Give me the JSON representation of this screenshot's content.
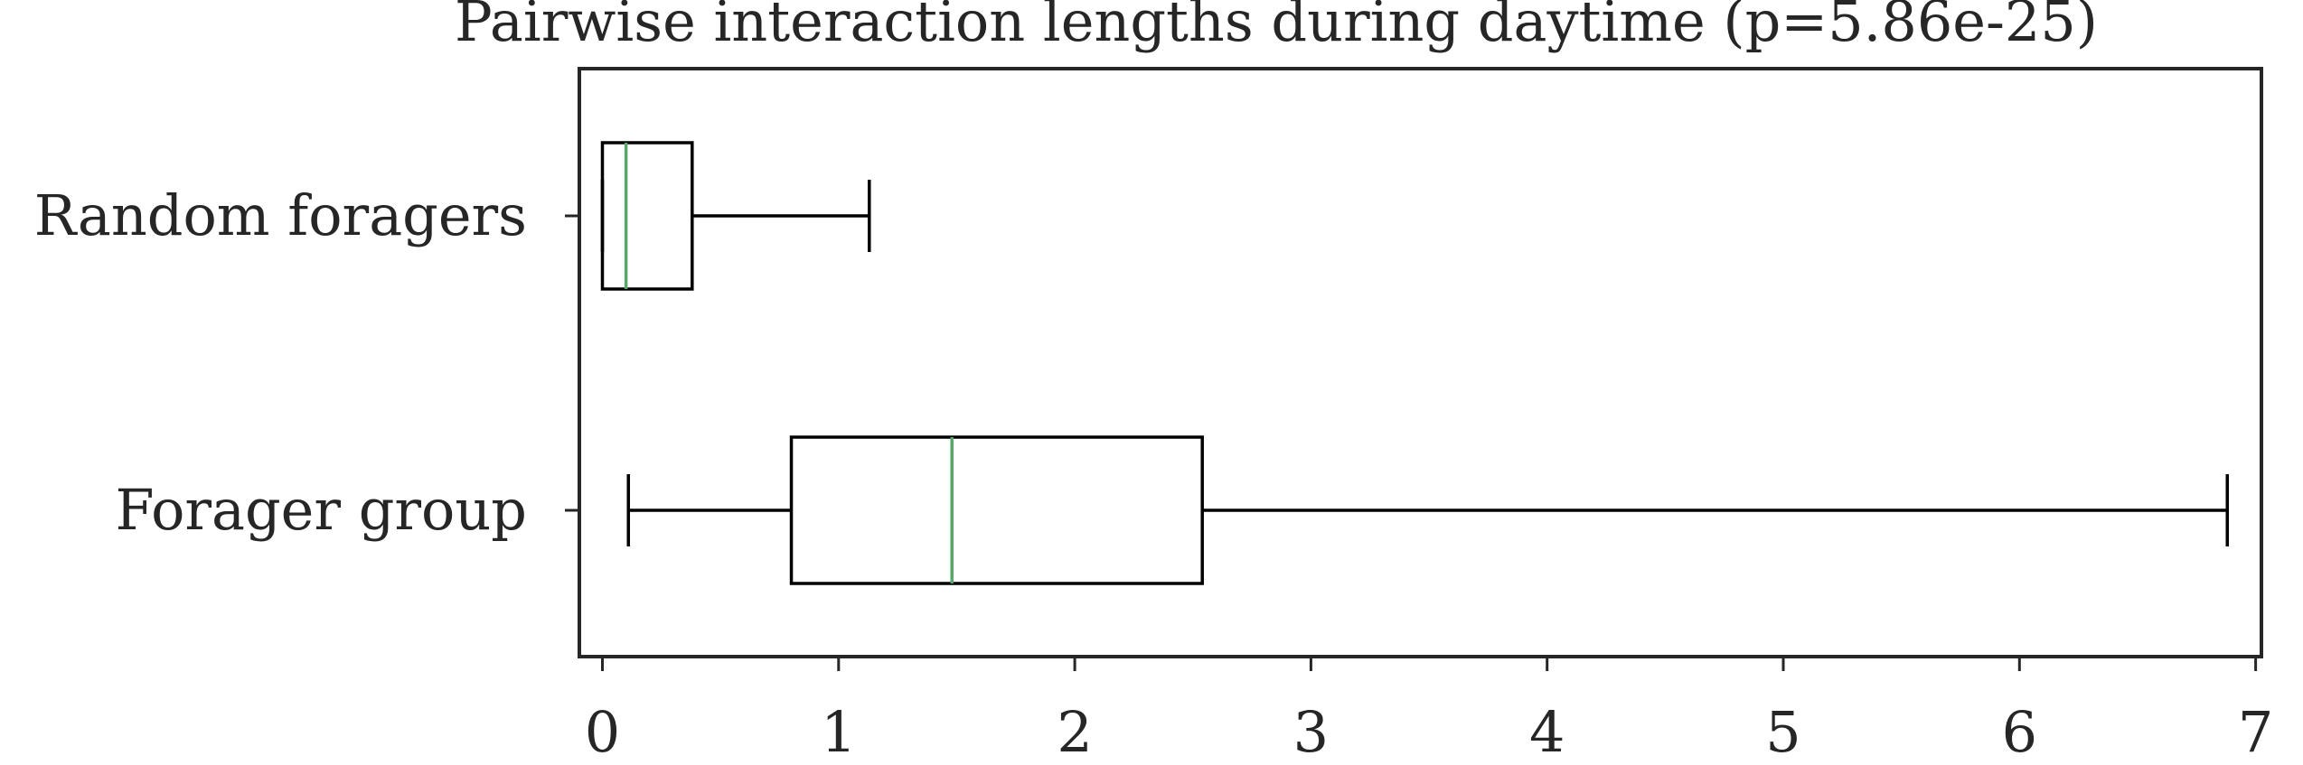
{
  "chart_data": {
    "type": "boxplot",
    "orientation": "horizontal",
    "title": "Pairwise interaction lengths during daytime (p=5.86e-25)",
    "xlabel": "",
    "ylabel": "",
    "xlim": [
      -0.1,
      7.05
    ],
    "xticks": [
      0,
      1,
      2,
      3,
      4,
      5,
      6,
      7
    ],
    "xtick_labels": [
      "0",
      "1",
      "2",
      "3",
      "4",
      "5",
      "6",
      "7"
    ],
    "categories": [
      "Random foragers",
      "Forager group"
    ],
    "boxes": [
      {
        "label": "Random foragers",
        "whisker_low": 0.0,
        "q1": 0.0,
        "median": 0.1,
        "q3": 0.38,
        "whisker_high": 1.13
      },
      {
        "label": "Forager group",
        "whisker_low": 0.11,
        "q1": 0.8,
        "median": 1.48,
        "q3": 2.54,
        "whisker_high": 6.88
      }
    ],
    "grid": false,
    "legend": "none",
    "colors": {
      "box": "#000000",
      "median": "#55a868",
      "axes": "#262626",
      "text": "#262626"
    }
  }
}
